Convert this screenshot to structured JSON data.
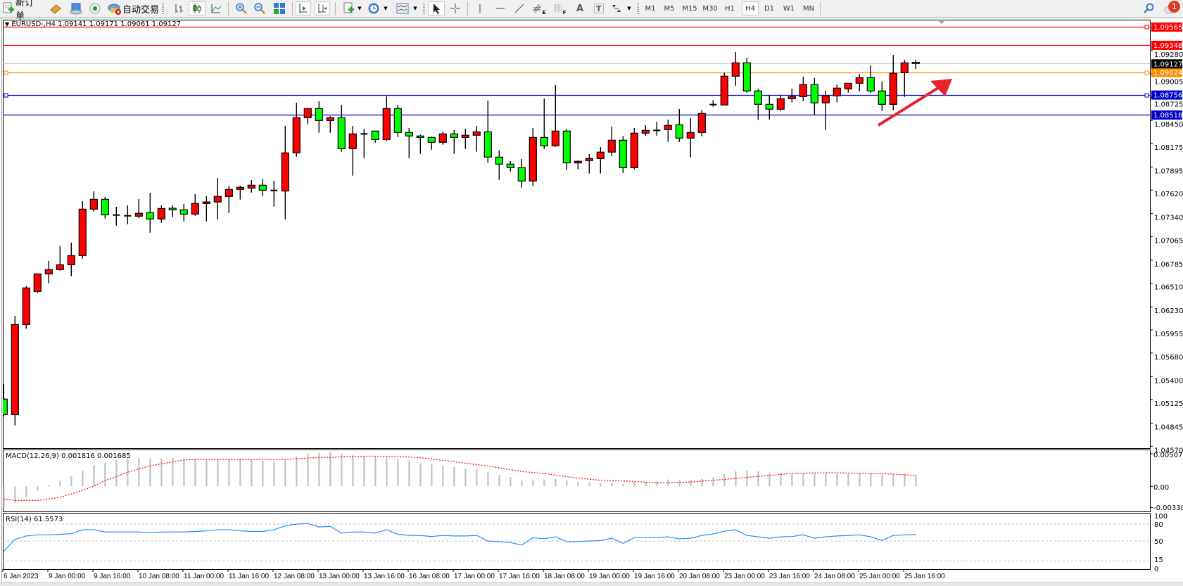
{
  "toolbar": {
    "new_order": "新订单",
    "auto_trading": "自动交易",
    "periods": [
      "M1",
      "M5",
      "M15",
      "M30",
      "H1",
      "H4",
      "D1",
      "W1",
      "MN"
    ],
    "active_period": "H4",
    "notification_count": "1",
    "drawing_tools": {
      "text": "A",
      "text_label": "T",
      "channels_sub": "E",
      "fibo_sub": "F"
    }
  },
  "chart_title": "EURUSD-,H4  1.09141 1.09171 1.09061 1.09127",
  "macd_title": "MACD(12,26,9) 0.001816 0.001685",
  "rsi_title": "RSI(14) 61.5573",
  "colors": {
    "bull": "#ff0000",
    "bear": "#00ff00",
    "macd_hist": "#c0c0c0",
    "macd_signal": "#ff0000",
    "rsi_line": "#1e90ff",
    "arrow": "#e8222a"
  },
  "chart_data": {
    "type": "candlestick",
    "symbol": "EURUSD-",
    "timeframe": "H4",
    "ohlc_order": [
      "open",
      "high",
      "low",
      "close"
    ],
    "candles": [
      [
        1.05132,
        1.0531,
        1.04927,
        1.04947
      ],
      [
        1.04947,
        1.06123,
        1.04818,
        1.06019
      ],
      [
        1.06019,
        1.06477,
        1.05969,
        1.06455
      ],
      [
        1.06413,
        1.06622,
        1.06393,
        1.06622
      ],
      [
        1.06622,
        1.06776,
        1.0651,
        1.06673
      ],
      [
        1.06673,
        1.06952,
        1.06661,
        1.06731
      ],
      [
        1.06731,
        1.06994,
        1.06594,
        1.0684
      ],
      [
        1.0684,
        1.07488,
        1.06803,
        1.07393
      ],
      [
        1.07393,
        1.07605,
        1.07365,
        1.0751
      ],
      [
        1.0751,
        1.07538,
        1.07281,
        1.07326
      ],
      [
        1.07323,
        1.07421,
        1.07197,
        1.07323
      ],
      [
        1.07314,
        1.07438,
        1.07214,
        1.07314
      ],
      [
        1.07309,
        1.07513,
        1.07287,
        1.07343
      ],
      [
        1.07351,
        1.07588,
        1.07113,
        1.07276
      ],
      [
        1.07276,
        1.07438,
        1.07231,
        1.07401
      ],
      [
        1.07404,
        1.07438,
        1.07298,
        1.07385
      ],
      [
        1.07385,
        1.07454,
        1.07247,
        1.07334
      ],
      [
        1.07334,
        1.07572,
        1.07314,
        1.0746
      ],
      [
        1.0746,
        1.07546,
        1.07247,
        1.07479
      ],
      [
        1.07479,
        1.07764,
        1.07273,
        1.07544
      ],
      [
        1.07544,
        1.07672,
        1.07348,
        1.07628
      ],
      [
        1.07628,
        1.07672,
        1.07507,
        1.07653
      ],
      [
        1.07644,
        1.07739,
        1.07591,
        1.07678
      ],
      [
        1.07678,
        1.07747,
        1.07549,
        1.07619
      ],
      [
        1.07616,
        1.07731,
        1.07423,
        1.07616
      ],
      [
        1.07609,
        1.08384,
        1.07273,
        1.08063
      ],
      [
        1.08063,
        1.0866,
        1.08018,
        1.08482
      ],
      [
        1.08482,
        1.08591,
        1.08403,
        1.08591
      ],
      [
        1.08591,
        1.08677,
        1.08303,
        1.08448
      ],
      [
        1.08448,
        1.08499,
        1.08303,
        1.08482
      ],
      [
        1.08482,
        1.08635,
        1.08077,
        1.08113
      ],
      [
        1.08113,
        1.08384,
        1.07792,
        1.08289
      ],
      [
        1.08289,
        1.0835,
        1.08001,
        1.08289
      ],
      [
        1.08323,
        1.08323,
        1.08185,
        1.08222
      ],
      [
        1.08222,
        1.08736,
        1.08202,
        1.08591
      ],
      [
        1.08591,
        1.08635,
        1.08252,
        1.08306
      ],
      [
        1.08306,
        1.08359,
        1.08001,
        1.08264
      ],
      [
        1.08264,
        1.08281,
        1.08051,
        1.08247
      ],
      [
        1.08247,
        1.08256,
        1.08102,
        1.08189
      ],
      [
        1.08189,
        1.08314,
        1.0816,
        1.08289
      ],
      [
        1.08289,
        1.08334,
        1.08051,
        1.08247
      ],
      [
        1.08247,
        1.0835,
        1.0811,
        1.08273
      ],
      [
        1.08273,
        1.08384,
        1.08077,
        1.08314
      ],
      [
        1.08314,
        1.08686,
        1.07943,
        1.08013
      ],
      [
        1.08013,
        1.08091,
        1.07742,
        1.07929
      ],
      [
        1.07929,
        1.07965,
        1.07842,
        1.07887
      ],
      [
        1.07887,
        1.0799,
        1.07649,
        1.07728
      ],
      [
        1.07728,
        1.08359,
        1.07666,
        1.08247
      ],
      [
        1.08247,
        1.08711,
        1.0811,
        1.08147
      ],
      [
        1.08147,
        1.0887,
        1.08135,
        1.08323
      ],
      [
        1.08323,
        1.08348,
        1.07859,
        1.07944
      ],
      [
        1.07943,
        1.07971,
        1.07867,
        1.07963
      ],
      [
        1.07971,
        1.08049,
        1.07817,
        1.07996
      ],
      [
        1.07996,
        1.08133,
        1.07817,
        1.08072
      ],
      [
        1.08072,
        1.08376,
        1.08026,
        1.08214
      ],
      [
        1.08214,
        1.08264,
        1.07825,
        1.07887
      ],
      [
        1.07887,
        1.08359,
        1.07867,
        1.08298
      ],
      [
        1.08298,
        1.08392,
        1.08269,
        1.08331
      ],
      [
        1.08331,
        1.08434,
        1.08269,
        1.08331
      ],
      [
        1.0834,
        1.08459,
        1.08194,
        1.0839
      ],
      [
        1.08398,
        1.08585,
        1.08194,
        1.08239
      ],
      [
        1.08239,
        1.08476,
        1.0801,
        1.08306
      ],
      [
        1.08306,
        1.08574,
        1.08261,
        1.08532
      ],
      [
        1.08638,
        1.08691,
        1.08613,
        1.08638
      ],
      [
        1.08633,
        1.09018,
        1.08633,
        1.08976
      ],
      [
        1.08976,
        1.09263,
        1.08864,
        1.09135
      ],
      [
        1.09135,
        1.09196,
        1.0878,
        1.088
      ],
      [
        1.088,
        1.08825,
        1.08454,
        1.08641
      ],
      [
        1.08641,
        1.0875,
        1.08462,
        1.08583
      ],
      [
        1.08583,
        1.0875,
        1.08562,
        1.08708
      ],
      [
        1.08708,
        1.08828,
        1.08663,
        1.08733
      ],
      [
        1.08733,
        1.0897,
        1.0868,
        1.08876
      ],
      [
        1.08876,
        1.08954,
        1.08516,
        1.08658
      ],
      [
        1.08658,
        1.08803,
        1.08336,
        1.08742
      ],
      [
        1.08742,
        1.08876,
        1.08663,
        1.08834
      ],
      [
        1.08825,
        1.08892,
        1.0878,
        1.08892
      ],
      [
        1.08892,
        1.09001,
        1.08797,
        1.08959
      ],
      [
        1.08959,
        1.09104,
        1.08775,
        1.088
      ],
      [
        1.088,
        1.08912,
        1.08562,
        1.08641
      ],
      [
        1.08641,
        1.0923,
        1.08571,
        1.09012
      ],
      [
        1.09018,
        1.09171,
        1.0873,
        1.09135
      ],
      [
        1.09141,
        1.09171,
        1.09061,
        1.09127
      ]
    ],
    "x_tick_labels": [
      "6 Jan 2023",
      "9 Jan 00:00",
      "9 Jan 16:00",
      "10 Jan 08:00",
      "11 Jan 00:00",
      "11 Jan 16:00",
      "12 Jan 08:00",
      "13 Jan 00:00",
      "13 Jan 16:00",
      "16 Jan 08:00",
      "17 Jan 00:00",
      "17 Jan 16:00",
      "18 Jan 08:00",
      "19 Jan 00:00",
      "19 Jan 16:00",
      "20 Jan 08:00",
      "23 Jan 00:00",
      "23 Jan 16:00",
      "24 Jan 08:00",
      "25 Jan 00:00",
      "25 Jan 16:00"
    ],
    "bars_per_x_tick": 4,
    "y_tick_labels": [
      "1.09280",
      "1.09005",
      "1.08725",
      "1.08450",
      "1.08175",
      "1.07895",
      "1.07620",
      "1.07340",
      "1.07065",
      "1.06785",
      "1.06510",
      "1.06230",
      "1.05955",
      "1.05680",
      "1.05400",
      "1.05125",
      "1.04845",
      "1.04570"
    ],
    "ylim": [
      1.0457,
      1.09565
    ],
    "current_price": {
      "value": 1.09127,
      "label": "1.09127",
      "color": "#000000"
    },
    "levels": [
      {
        "value": 1.09565,
        "label": "1.09565",
        "color": "#ff0000",
        "handle": true
      },
      {
        "value": 1.09348,
        "label": "1.09348",
        "color": "#ff0000",
        "handle": false
      },
      {
        "value": 1.09024,
        "label": "1.09024",
        "color": "#ff8c00",
        "handle": true
      },
      {
        "value": 1.08756,
        "label": "1.08756",
        "color": "#0000cd",
        "handle": true
      },
      {
        "value": 1.08518,
        "label": "1.08518",
        "color": "#0000cd",
        "handle": false
      }
    ],
    "annotation": {
      "type": "arrow",
      "direction": "up-right"
    },
    "macd": {
      "params": "12,26,9",
      "ylim": [
        -0.003301,
        0.005078
      ],
      "y_tick_labels": [
        "0.005078",
        "0.00",
        "-0.003301"
      ],
      "histogram": [
        -0.00329,
        -0.0026,
        -0.00165,
        -0.00066,
        0.00022,
        0.00088,
        0.00154,
        0.00242,
        0.00329,
        0.00373,
        0.0041,
        0.00432,
        0.00439,
        0.00439,
        0.00439,
        0.00439,
        0.00425,
        0.00425,
        0.00425,
        0.00425,
        0.00425,
        0.00425,
        0.00425,
        0.00395,
        0.00384,
        0.00406,
        0.00461,
        0.00505,
        0.00527,
        0.00538,
        0.00505,
        0.00483,
        0.00468,
        0.0047,
        0.00454,
        0.00425,
        0.00403,
        0.00366,
        0.00344,
        0.00322,
        0.003,
        0.00278,
        0.00267,
        0.00223,
        0.00179,
        0.00146,
        0.00092,
        0.00106,
        0.00106,
        0.00113,
        0.00092,
        0.0007,
        0.00059,
        0.00048,
        0.00059,
        0.00037,
        0.0007,
        0.0007,
        0.00081,
        0.00106,
        0.00092,
        0.00095,
        0.00113,
        0.00135,
        0.0019,
        0.00234,
        0.00245,
        0.00234,
        0.00212,
        0.00212,
        0.00201,
        0.00201,
        0.00201,
        0.00201,
        0.00197,
        0.00197,
        0.00197,
        0.00197,
        0.00186,
        0.00197,
        0.00197,
        0.001816
      ],
      "signal": [
        -0.002,
        -0.0022,
        -0.0022,
        -0.0022,
        -0.002,
        -0.0017,
        -0.0012,
        -0.0006,
        0.0,
        0.0009,
        0.0015,
        0.0022,
        0.0027,
        0.0032,
        0.0035,
        0.0038,
        0.0041,
        0.0042,
        0.0042,
        0.0042,
        0.0042,
        0.0042,
        0.0042,
        0.0042,
        0.0042,
        0.0042,
        0.0043,
        0.0044,
        0.0045,
        0.0045,
        0.0046,
        0.0046,
        0.0047,
        0.0047,
        0.00468,
        0.00462,
        0.00458,
        0.00445,
        0.00428,
        0.00405,
        0.00385,
        0.0036,
        0.00338,
        0.00315,
        0.0029,
        0.0026,
        0.0023,
        0.00215,
        0.002,
        0.00175,
        0.0015,
        0.0013,
        0.0011,
        0.00095,
        0.00088,
        0.00082,
        0.00075,
        0.00065,
        0.00056,
        0.00058,
        0.00062,
        0.00068,
        0.0008,
        0.00095,
        0.00106,
        0.00125,
        0.0014,
        0.00154,
        0.0017,
        0.00185,
        0.002,
        0.00205,
        0.00209,
        0.0021,
        0.0021,
        0.00208,
        0.00205,
        0.002,
        0.00195,
        0.0019,
        0.0018,
        0.001685
      ]
    },
    "rsi": {
      "period": 14,
      "ylim": [
        0,
        100
      ],
      "levels": [
        80,
        50,
        15
      ],
      "y_tick_labels": [
        "100",
        "80",
        "50",
        "15",
        "0"
      ],
      "values": [
        32,
        53,
        59,
        61,
        61,
        62,
        63,
        70,
        70,
        66,
        66,
        66,
        66,
        65,
        66,
        66,
        66,
        67,
        68,
        70,
        70,
        68,
        67,
        67,
        70,
        77,
        80,
        81,
        75,
        76,
        64,
        66,
        66,
        64,
        70,
        62,
        60,
        60,
        58,
        60,
        59,
        59,
        60,
        50,
        49,
        47.5,
        43,
        56,
        54,
        57.5,
        49,
        49,
        50,
        51,
        55,
        46,
        56,
        56,
        56,
        57.5,
        54,
        55,
        60,
        62.5,
        67.5,
        70,
        60,
        57.5,
        55,
        57.5,
        58,
        61,
        55,
        57.5,
        59,
        60,
        61,
        57.5,
        51,
        60,
        61,
        61.5573
      ]
    }
  }
}
